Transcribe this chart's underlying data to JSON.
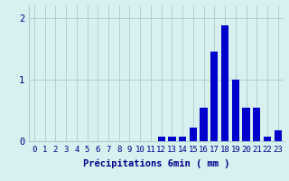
{
  "hours": [
    0,
    1,
    2,
    3,
    4,
    5,
    6,
    7,
    8,
    9,
    10,
    11,
    12,
    13,
    14,
    15,
    16,
    17,
    18,
    19,
    20,
    21,
    22,
    23
  ],
  "values": [
    0.0,
    0.0,
    0.0,
    0.0,
    0.0,
    0.0,
    0.0,
    0.0,
    0.0,
    0.0,
    0.0,
    0.0,
    0.07,
    0.07,
    0.07,
    0.22,
    0.55,
    1.45,
    1.88,
    1.0,
    0.55,
    0.55,
    0.07,
    0.18
  ],
  "bar_color": "#0000cc",
  "bg_color": "#d8f0f0",
  "grid_color": "#aacccc",
  "text_color": "#00008b",
  "xlabel": "Précipitations 6min ( mm )",
  "ylim": [
    0,
    2.2
  ],
  "yticks": [
    0,
    1,
    2
  ],
  "xlabel_fontsize": 7.5,
  "tick_fontsize": 6.5
}
